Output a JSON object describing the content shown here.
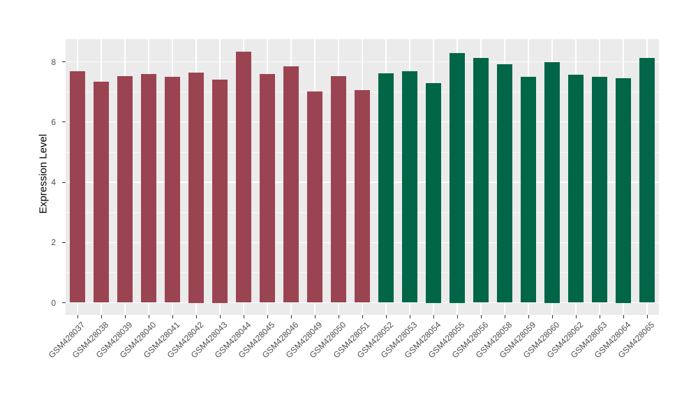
{
  "figure": {
    "background": "#FFFFFF",
    "panel_background": "#EBEBEB",
    "grid_major_color": "#FFFFFF",
    "grid_minor_color": "rgba(255,255,255,0.65)",
    "axis_text_color": "#4D4D4D",
    "tick_mark_color": "#333333"
  },
  "chart_data": {
    "type": "bar",
    "title": "",
    "xlabel": "",
    "ylabel": "Expression Level",
    "ylim": [
      0,
      8.74
    ],
    "yticks": [
      0,
      2,
      4,
      6,
      8
    ],
    "minor_gridlines": [
      1,
      3,
      5,
      7
    ],
    "grid": "on",
    "legend": "none",
    "x_label_rotation_deg": 45,
    "groups": [
      {
        "name": "group-1",
        "color": "#9B4451"
      },
      {
        "name": "group-2",
        "color": "#006647"
      }
    ],
    "bars": [
      {
        "label": "GSM428037",
        "value": 7.69,
        "group": 0
      },
      {
        "label": "GSM428038",
        "value": 7.33,
        "group": 0
      },
      {
        "label": "GSM428039",
        "value": 7.52,
        "group": 0
      },
      {
        "label": "GSM428040",
        "value": 7.59,
        "group": 0
      },
      {
        "label": "GSM428041",
        "value": 7.49,
        "group": 0
      },
      {
        "label": "GSM428042",
        "value": 7.65,
        "group": 0
      },
      {
        "label": "GSM428043",
        "value": 7.4,
        "group": 0
      },
      {
        "label": "GSM428044",
        "value": 8.33,
        "group": 0
      },
      {
        "label": "GSM428045",
        "value": 7.59,
        "group": 0
      },
      {
        "label": "GSM428046",
        "value": 7.84,
        "group": 0
      },
      {
        "label": "GSM428049",
        "value": 7.02,
        "group": 0
      },
      {
        "label": "GSM428050",
        "value": 7.52,
        "group": 0
      },
      {
        "label": "GSM428051",
        "value": 7.06,
        "group": 0
      },
      {
        "label": "GSM428052",
        "value": 7.62,
        "group": 1
      },
      {
        "label": "GSM428053",
        "value": 7.68,
        "group": 1
      },
      {
        "label": "GSM428054",
        "value": 7.3,
        "group": 1
      },
      {
        "label": "GSM428055",
        "value": 8.3,
        "group": 1
      },
      {
        "label": "GSM428056",
        "value": 8.13,
        "group": 1
      },
      {
        "label": "GSM428058",
        "value": 7.93,
        "group": 1
      },
      {
        "label": "GSM428059",
        "value": 7.49,
        "group": 1
      },
      {
        "label": "GSM428060",
        "value": 8.0,
        "group": 1
      },
      {
        "label": "GSM428062",
        "value": 7.57,
        "group": 1
      },
      {
        "label": "GSM428063",
        "value": 7.51,
        "group": 1
      },
      {
        "label": "GSM428064",
        "value": 7.45,
        "group": 1
      },
      {
        "label": "GSM428065",
        "value": 8.12,
        "group": 1
      }
    ]
  }
}
